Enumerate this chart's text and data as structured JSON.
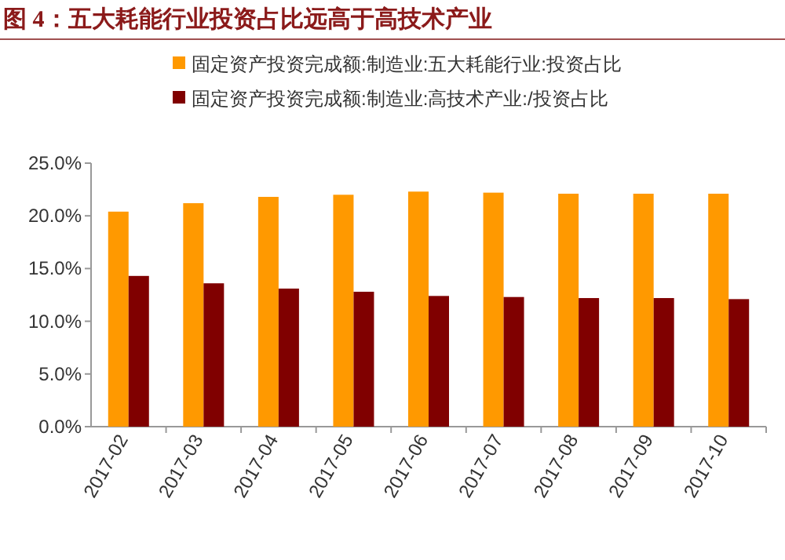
{
  "chart_data": {
    "type": "bar",
    "title": "图 4：五大耗能行业投资占比远高于高技术产业",
    "categories": [
      "2017-02",
      "2017-03",
      "2017-04",
      "2017-05",
      "2017-06",
      "2017-07",
      "2017-08",
      "2017-09",
      "2017-10"
    ],
    "series": [
      {
        "name": "固定资产投资完成额:制造业:五大耗能行业:投资占比",
        "color": "#ff9900",
        "values": [
          20.4,
          21.2,
          21.8,
          22.0,
          22.3,
          22.2,
          22.1,
          22.1,
          22.1
        ]
      },
      {
        "name": "固定资产投资完成额:制造业:高技术产业:/投资占比",
        "color": "#800000",
        "values": [
          14.3,
          13.6,
          13.1,
          12.8,
          12.4,
          12.3,
          12.2,
          12.2,
          12.1
        ]
      }
    ],
    "ylim": [
      0,
      25
    ],
    "yticks": [
      {
        "value": 0,
        "label": "0.0%"
      },
      {
        "value": 5,
        "label": "5.0%"
      },
      {
        "value": 10,
        "label": "10.0%"
      },
      {
        "value": 15,
        "label": "15.0%"
      },
      {
        "value": 20,
        "label": "20.0%"
      },
      {
        "value": 25,
        "label": "25.0%"
      }
    ],
    "grid": false,
    "legend": "top"
  }
}
